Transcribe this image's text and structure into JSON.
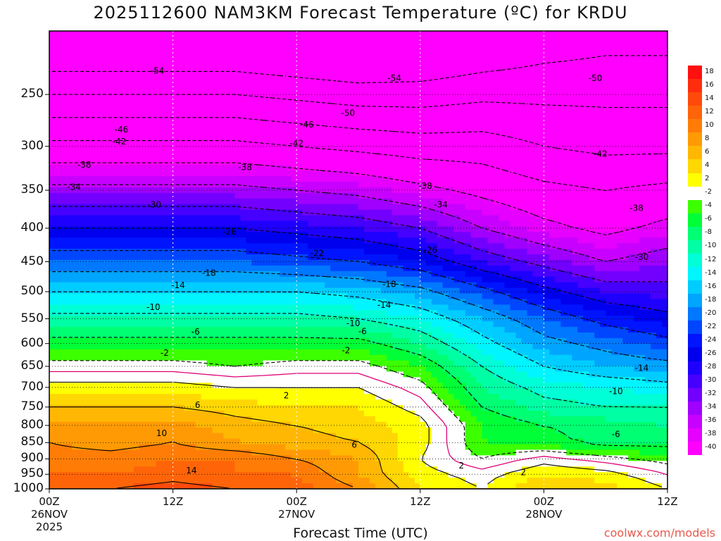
{
  "title": "2025112600 NAM3KM Forecast Temperature (ºC) for KRDU",
  "credit": "coolwx.com/models",
  "chart_data": {
    "type": "heatmap",
    "title": "2025112600 NAM3KM Forecast Temperature (ºC) for KRDU",
    "xlabel": "Forecast Time (UTC)",
    "ylabel": "",
    "x_hours": [
      0,
      6,
      12,
      18,
      24,
      30,
      36,
      42,
      48,
      54,
      60
    ],
    "x_ticks": [
      {
        "hour": 0,
        "lines": [
          "00Z",
          "26NOV",
          "2025"
        ]
      },
      {
        "hour": 12,
        "lines": [
          "12Z"
        ]
      },
      {
        "hour": 24,
        "lines": [
          "00Z",
          "27NOV"
        ]
      },
      {
        "hour": 36,
        "lines": [
          "12Z"
        ]
      },
      {
        "hour": 48,
        "lines": [
          "00Z",
          "28NOV"
        ]
      },
      {
        "hour": 60,
        "lines": [
          "12Z"
        ]
      }
    ],
    "y_levels": [
      1000,
      950,
      900,
      850,
      800,
      750,
      700,
      650,
      600,
      550,
      500,
      450,
      400,
      350,
      300,
      250
    ],
    "ylim": [
      1000,
      200
    ],
    "y_scale": "log",
    "temperature_C": [
      [
        14,
        14,
        15,
        14,
        13,
        10,
        4,
        2,
        6,
        5,
        2
      ],
      [
        12,
        12,
        13,
        12,
        12,
        8,
        3,
        1,
        4,
        3,
        0
      ],
      [
        11,
        11,
        12,
        12,
        10,
        8,
        2,
        -2,
        1,
        -1,
        -3
      ],
      [
        10,
        9,
        10,
        8,
        7,
        6,
        3,
        -4,
        -5,
        -7,
        -7
      ],
      [
        9,
        9,
        9,
        7,
        6,
        5,
        3,
        -4,
        -6,
        -7,
        -8
      ],
      [
        6,
        6,
        6,
        5,
        4,
        4,
        1,
        -6,
        -9,
        -10,
        -10
      ],
      [
        3,
        3,
        3,
        2,
        2,
        2,
        -1,
        -8,
        -11,
        -12,
        -13
      ],
      [
        -1,
        -1,
        -1,
        -2,
        -1,
        -1,
        -4,
        -10,
        -14,
        -16,
        -17
      ],
      [
        -5,
        -5,
        -5,
        -5,
        -5,
        -5,
        -8,
        -13,
        -17,
        -19,
        -21
      ],
      [
        -9,
        -9,
        -9,
        -9,
        -9,
        -10,
        -12,
        -16,
        -20,
        -23,
        -25
      ],
      [
        -14,
        -14,
        -14,
        -14,
        -14,
        -15,
        -17,
        -21,
        -25,
        -28,
        -29
      ],
      [
        -20,
        -20,
        -20,
        -20,
        -21,
        -22,
        -24,
        -28,
        -31,
        -34,
        -32
      ],
      [
        -26,
        -26,
        -26,
        -26,
        -27,
        -28,
        -30,
        -34,
        -37,
        -39,
        -37
      ],
      [
        -33,
        -33,
        -33,
        -33,
        -34,
        -35,
        -37,
        -39,
        -41,
        -42,
        -41
      ],
      [
        -41,
        -41,
        -41,
        -41,
        -42,
        -43,
        -44,
        -44,
        -46,
        -47,
        -47
      ],
      [
        -50,
        -50,
        -50,
        -50,
        -51,
        -52,
        -52,
        -51,
        -51,
        -51,
        -51
      ]
    ],
    "contour_labels": [
      {
        "text": "-54",
        "hour": 10.5,
        "p": 230
      },
      {
        "text": "-54",
        "hour": 33.5,
        "p": 236
      },
      {
        "text": "-50",
        "hour": 53,
        "p": 236
      },
      {
        "text": "-50",
        "hour": 29,
        "p": 267
      },
      {
        "text": "-46",
        "hour": 7,
        "p": 283
      },
      {
        "text": "-46",
        "hour": 25,
        "p": 278
      },
      {
        "text": "-42",
        "hour": 6.8,
        "p": 295
      },
      {
        "text": "-42",
        "hour": 24,
        "p": 297
      },
      {
        "text": "-42",
        "hour": 53.5,
        "p": 308
      },
      {
        "text": "-38",
        "hour": 3.4,
        "p": 320
      },
      {
        "text": "-38",
        "hour": 19,
        "p": 323
      },
      {
        "text": "-38",
        "hour": 36.5,
        "p": 345
      },
      {
        "text": "-38",
        "hour": 57,
        "p": 373
      },
      {
        "text": "-34",
        "hour": 2.4,
        "p": 346
      },
      {
        "text": "-34",
        "hour": 38,
        "p": 368
      },
      {
        "text": "-30",
        "hour": 10.2,
        "p": 368
      },
      {
        "text": "-30",
        "hour": 57.5,
        "p": 443
      },
      {
        "text": "-26",
        "hour": 17.5,
        "p": 405
      },
      {
        "text": "-26",
        "hour": 37,
        "p": 432
      },
      {
        "text": "-22",
        "hour": 26,
        "p": 437
      },
      {
        "text": "-18",
        "hour": 15.5,
        "p": 468
      },
      {
        "text": "-18",
        "hour": 33,
        "p": 487
      },
      {
        "text": "-14",
        "hour": 12.5,
        "p": 489
      },
      {
        "text": "-14",
        "hour": 32.5,
        "p": 524
      },
      {
        "text": "-14",
        "hour": 57.5,
        "p": 654
      },
      {
        "text": "-10",
        "hour": 10.1,
        "p": 528
      },
      {
        "text": "-10",
        "hour": 29.5,
        "p": 559
      },
      {
        "text": "-10",
        "hour": 55,
        "p": 710
      },
      {
        "text": "-6",
        "hour": 14.2,
        "p": 576
      },
      {
        "text": "-6",
        "hour": 30.4,
        "p": 575
      },
      {
        "text": "-6",
        "hour": 55,
        "p": 825
      },
      {
        "text": "-2",
        "hour": 11.2,
        "p": 620
      },
      {
        "text": "-2",
        "hour": 28.8,
        "p": 615
      },
      {
        "text": "2",
        "hour": 23,
        "p": 720
      },
      {
        "text": "2",
        "hour": 40,
        "p": 922
      },
      {
        "text": "2",
        "hour": 46,
        "p": 943
      },
      {
        "text": "6",
        "hour": 14.4,
        "p": 745
      },
      {
        "text": "6",
        "hour": 29.6,
        "p": 857
      },
      {
        "text": "10",
        "hour": 10.9,
        "p": 822
      },
      {
        "text": "14",
        "hour": 13.8,
        "p": 938
      }
    ],
    "colorbar": [
      {
        "label": "18",
        "color": "#ff0f0f"
      },
      {
        "label": "16",
        "color": "#ff2d0d"
      },
      {
        "label": "14",
        "color": "#ff4a0b"
      },
      {
        "label": "12",
        "color": "#ff6409"
      },
      {
        "label": "10",
        "color": "#ff7d07"
      },
      {
        "label": "8",
        "color": "#ff9a05"
      },
      {
        "label": "6",
        "color": "#ffb703"
      },
      {
        "label": "4",
        "color": "#ffd702"
      },
      {
        "label": "2",
        "color": "#ffff00"
      },
      {
        "label": "-2",
        "color": "#ffffff"
      },
      {
        "label": "-4",
        "color": "#3cff00"
      },
      {
        "label": "-6",
        "color": "#00ff37"
      },
      {
        "label": "-8",
        "color": "#00ff73"
      },
      {
        "label": "-10",
        "color": "#00ffa5"
      },
      {
        "label": "-12",
        "color": "#00ffd7"
      },
      {
        "label": "-14",
        "color": "#00f5ff"
      },
      {
        "label": "-16",
        "color": "#00cdff"
      },
      {
        "label": "-18",
        "color": "#00a5ff"
      },
      {
        "label": "-20",
        "color": "#0078ff"
      },
      {
        "label": "-22",
        "color": "#0046ff"
      },
      {
        "label": "-24",
        "color": "#0014ff"
      },
      {
        "label": "-26",
        "color": "#0000ee"
      },
      {
        "label": "-28",
        "color": "#1e00ff"
      },
      {
        "label": "-30",
        "color": "#4600ff"
      },
      {
        "label": "-32",
        "color": "#7300ff"
      },
      {
        "label": "-34",
        "color": "#a000ff"
      },
      {
        "label": "-36",
        "color": "#c800ff"
      },
      {
        "label": "-38",
        "color": "#e600ff"
      },
      {
        "label": "-40",
        "color": "#ff00ff"
      }
    ],
    "grid": true
  }
}
